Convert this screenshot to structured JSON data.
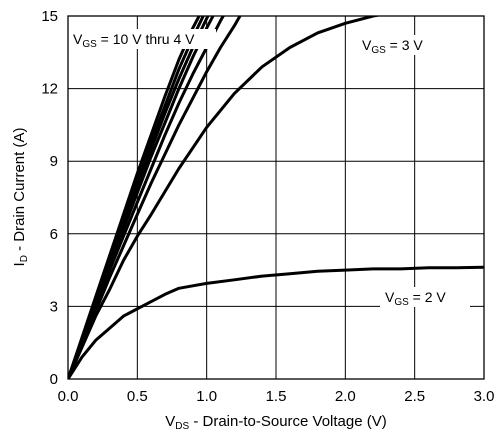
{
  "chart_data": {
    "type": "line",
    "xlabel": {
      "main": "V",
      "sub": "DS",
      "rest": " - Drain-to-Source Voltage (V)"
    },
    "ylabel": {
      "main": "I",
      "sub": "D",
      "rest": " - Drain Current (A)"
    },
    "xlim": [
      0,
      3.0
    ],
    "ylim": [
      0,
      15
    ],
    "x_ticks": [
      "0.0",
      "0.5",
      "1.0",
      "1.5",
      "2.0",
      "2.5",
      "3.0"
    ],
    "y_ticks": [
      "0",
      "3",
      "6",
      "9",
      "12",
      "15"
    ],
    "grid": true,
    "annotations": [
      {
        "id": "vgs-10-4",
        "main": "V",
        "sub": "GS",
        "rest": " = 10 V thru 4 V"
      },
      {
        "id": "vgs-3",
        "main": "V",
        "sub": "GS",
        "rest": " = 3 V"
      },
      {
        "id": "vgs-2",
        "main": "V",
        "sub": "GS",
        "rest": " = 2 V"
      }
    ],
    "series": [
      {
        "x": [
          0,
          0.1,
          0.2,
          0.3,
          0.4,
          0.5,
          0.6,
          0.7,
          0.8,
          0.9,
          1.0,
          1.05
        ],
        "y": [
          0,
          1.7,
          3.4,
          5.1,
          6.8,
          8.5,
          10.1,
          11.7,
          13.2,
          14.5,
          15.6,
          16.0
        ]
      },
      {
        "x": [
          0,
          0.1,
          0.2,
          0.3,
          0.4,
          0.5,
          0.6,
          0.7,
          0.8,
          0.9,
          1.0,
          1.05
        ],
        "y": [
          0,
          1.65,
          3.3,
          5.0,
          6.6,
          8.2,
          9.8,
          11.3,
          12.8,
          14.1,
          15.3,
          15.9
        ]
      },
      {
        "x": [
          0,
          0.1,
          0.2,
          0.3,
          0.4,
          0.5,
          0.6,
          0.7,
          0.8,
          0.9,
          1.0,
          1.1
        ],
        "y": [
          0,
          1.6,
          3.2,
          4.8,
          6.4,
          8.0,
          9.5,
          11.0,
          12.4,
          13.7,
          14.9,
          16.0
        ]
      },
      {
        "x": [
          0,
          0.1,
          0.2,
          0.3,
          0.4,
          0.5,
          0.6,
          0.7,
          0.8,
          0.9,
          1.0,
          1.1
        ],
        "y": [
          0,
          1.55,
          3.1,
          4.6,
          6.2,
          7.7,
          9.2,
          10.6,
          12.0,
          13.3,
          14.5,
          15.6
        ]
      },
      {
        "x": [
          0,
          0.1,
          0.2,
          0.3,
          0.4,
          0.5,
          0.6,
          0.7,
          0.8,
          0.9,
          1.0,
          1.1,
          1.2
        ],
        "y": [
          0,
          1.5,
          3.0,
          4.5,
          5.9,
          7.3,
          8.7,
          10.1,
          11.4,
          12.6,
          13.7,
          14.8,
          15.8
        ]
      },
      {
        "x": [
          0,
          0.1,
          0.2,
          0.3,
          0.4,
          0.5,
          0.6,
          0.7,
          0.8,
          0.9,
          1.0,
          1.1,
          1.2,
          1.3
        ],
        "y": [
          0,
          1.4,
          2.8,
          4.2,
          5.5,
          6.8,
          8.1,
          9.3,
          10.5,
          11.6,
          12.7,
          13.7,
          14.6,
          15.6
        ]
      },
      {
        "x": [
          0,
          0.1,
          0.2,
          0.3,
          0.4,
          0.5,
          0.6,
          0.8,
          1.0,
          1.2,
          1.4,
          1.6,
          1.8,
          2.0,
          2.2,
          2.4,
          2.5
        ],
        "y": [
          0,
          1.3,
          2.6,
          3.7,
          4.9,
          5.9,
          6.8,
          8.7,
          10.4,
          11.8,
          12.9,
          13.7,
          14.3,
          14.7,
          15.0,
          15.2,
          15.3
        ]
      },
      {
        "x": [
          0,
          0.1,
          0.2,
          0.3,
          0.4,
          0.5,
          0.6,
          0.7,
          0.8,
          0.9,
          1.0,
          1.2,
          1.4,
          1.6,
          1.8,
          2.0,
          2.2,
          2.4,
          2.6,
          2.8,
          3.0
        ],
        "y": [
          0,
          0.9,
          1.6,
          2.1,
          2.6,
          2.9,
          3.2,
          3.5,
          3.75,
          3.85,
          3.95,
          4.1,
          4.25,
          4.35,
          4.45,
          4.5,
          4.55,
          4.55,
          4.6,
          4.6,
          4.62
        ]
      }
    ]
  }
}
